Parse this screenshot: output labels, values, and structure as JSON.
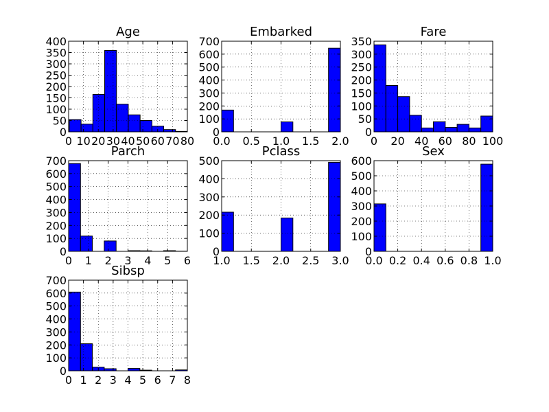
{
  "figure": {
    "background": "#ffffff",
    "bar_color": "#0000ff",
    "edge_color": "#000000"
  },
  "chart_data": [
    {
      "type": "bar",
      "title": "Age",
      "grid": true,
      "xlim": [
        0,
        80
      ],
      "ylim": [
        0,
        400
      ],
      "xticks": [
        0,
        10,
        20,
        30,
        40,
        50,
        60,
        70,
        80
      ],
      "yticks": [
        0,
        50,
        100,
        150,
        200,
        250,
        300,
        350,
        400
      ],
      "bin_edges": [
        0.42,
        8.38,
        16.34,
        24.29,
        32.25,
        40.21,
        48.17,
        56.13,
        64.08,
        72.04,
        80.0
      ],
      "values": [
        54,
        34,
        165,
        359,
        122,
        75,
        50,
        25,
        10,
        2
      ]
    },
    {
      "type": "bar",
      "title": "Embarked",
      "grid": true,
      "xlim": [
        0.0,
        2.0
      ],
      "ylim": [
        0,
        700
      ],
      "xticks": [
        0.0,
        0.5,
        1.0,
        1.5,
        2.0
      ],
      "xtick_decimals": 1,
      "yticks": [
        0,
        100,
        200,
        300,
        400,
        500,
        600,
        700
      ],
      "bin_edges": [
        0.0,
        0.2,
        0.4,
        0.6,
        0.8,
        1.0,
        1.2,
        1.4,
        1.6,
        1.8,
        2.0
      ],
      "values": [
        168,
        0,
        0,
        0,
        0,
        77,
        0,
        0,
        0,
        646
      ]
    },
    {
      "type": "bar",
      "title": "Fare",
      "grid": true,
      "xlim": [
        0,
        100
      ],
      "ylim": [
        0,
        350
      ],
      "xticks": [
        0,
        20,
        40,
        60,
        80,
        100
      ],
      "yticks": [
        0,
        50,
        100,
        150,
        200,
        250,
        300,
        350
      ],
      "bin_edges": [
        0,
        10,
        20,
        30,
        40,
        50,
        60,
        70,
        80,
        90,
        100
      ],
      "values": [
        336,
        179,
        136,
        64,
        15,
        39,
        17,
        29,
        15,
        61
      ]
    },
    {
      "type": "bar",
      "title": "Parch",
      "grid": true,
      "xlim": [
        0,
        6
      ],
      "ylim": [
        0,
        700
      ],
      "xticks": [
        0,
        1,
        2,
        3,
        4,
        5,
        6
      ],
      "yticks": [
        0,
        100,
        200,
        300,
        400,
        500,
        600,
        700
      ],
      "bin_edges": [
        0.0,
        0.6,
        1.2,
        1.8,
        2.4,
        3.0,
        3.6,
        4.2,
        4.8,
        5.4,
        6.0
      ],
      "values": [
        678,
        118,
        0,
        80,
        0,
        5,
        4,
        0,
        5,
        1
      ]
    },
    {
      "type": "bar",
      "title": "Pclass",
      "grid": true,
      "xlim": [
        1.0,
        3.0
      ],
      "ylim": [
        0,
        500
      ],
      "xticks": [
        1.0,
        1.5,
        2.0,
        2.5,
        3.0
      ],
      "xtick_decimals": 1,
      "yticks": [
        0,
        100,
        200,
        300,
        400,
        500
      ],
      "bin_edges": [
        1.0,
        1.2,
        1.4,
        1.6,
        1.8,
        2.0,
        2.2,
        2.4,
        2.6,
        2.8,
        3.0
      ],
      "values": [
        216,
        0,
        0,
        0,
        0,
        184,
        0,
        0,
        0,
        491
      ]
    },
    {
      "type": "bar",
      "title": "Sex",
      "grid": true,
      "xlim": [
        0.0,
        1.0
      ],
      "ylim": [
        0,
        600
      ],
      "xticks": [
        0.0,
        0.2,
        0.4,
        0.6,
        0.8,
        1.0
      ],
      "xtick_decimals": 1,
      "yticks": [
        0,
        100,
        200,
        300,
        400,
        500,
        600
      ],
      "bin_edges": [
        0.0,
        0.1,
        0.2,
        0.3,
        0.4,
        0.5,
        0.6,
        0.7,
        0.8,
        0.9,
        1.0
      ],
      "values": [
        314,
        0,
        0,
        0,
        0,
        0,
        0,
        0,
        0,
        577
      ]
    },
    {
      "type": "bar",
      "title": "Sibsp",
      "grid": true,
      "xlim": [
        0,
        8
      ],
      "ylim": [
        0,
        700
      ],
      "xticks": [
        0,
        1,
        2,
        3,
        4,
        5,
        6,
        7,
        8
      ],
      "yticks": [
        0,
        100,
        200,
        300,
        400,
        500,
        600,
        700
      ],
      "bin_edges": [
        0.0,
        0.8,
        1.6,
        2.4,
        3.2,
        4.0,
        4.8,
        5.6,
        6.4,
        7.2,
        8.0
      ],
      "values": [
        608,
        209,
        28,
        16,
        0,
        18,
        5,
        0,
        0,
        7
      ]
    }
  ]
}
